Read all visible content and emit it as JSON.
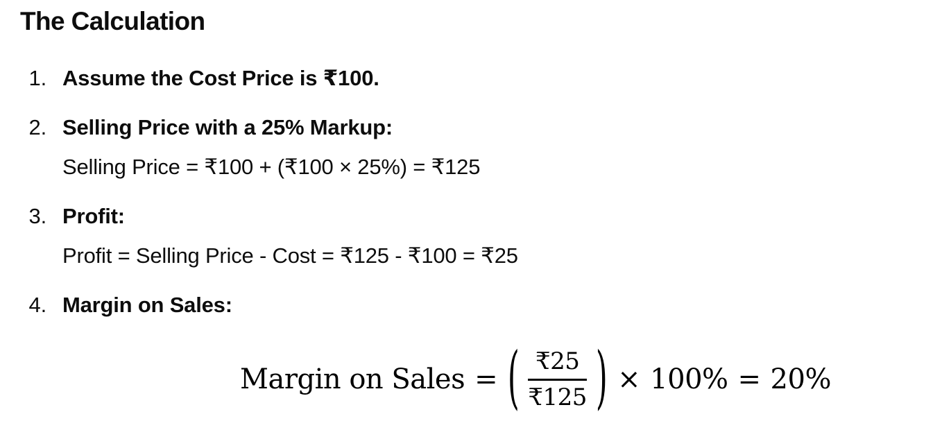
{
  "page": {
    "background_color": "#ffffff",
    "text_color": "#0d0d0d"
  },
  "heading": "The Calculation",
  "list": {
    "items": [
      {
        "number": "1.",
        "title": "Assume the Cost Price is ₹100.",
        "detail": ""
      },
      {
        "number": "2.",
        "title": "Selling Price with a 25% Markup:",
        "detail": "Selling Price = ₹100 + (₹100 × 25%) = ₹125"
      },
      {
        "number": "3.",
        "title": "Profit:",
        "detail": "Profit = Selling Price - Cost = ₹125 - ₹100 = ₹25"
      },
      {
        "number": "4.",
        "title": "Margin on Sales:",
        "detail": ""
      }
    ]
  },
  "formula": {
    "label": "Margin on Sales",
    "equals": "=",
    "open_paren": "(",
    "numerator": "₹25",
    "denominator": "₹125",
    "close_paren": ")",
    "multiply": "×",
    "percent_factor": "100%",
    "equals_result": "=",
    "result": "20%"
  }
}
